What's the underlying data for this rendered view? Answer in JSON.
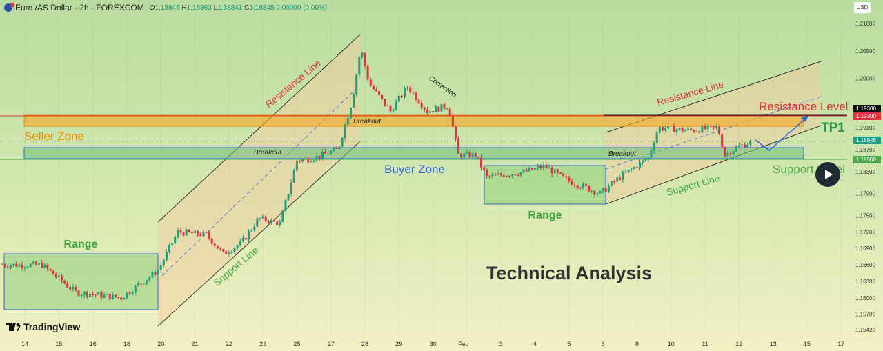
{
  "header": {
    "symbol": "Euro /AS Dollar · 2h · FOREXCOM",
    "open_label": "O",
    "open": "1,18845",
    "high_label": "H",
    "high": "1.18863",
    "low_label": "L",
    "low": "1.18841",
    "close_label": "C",
    "close": "1,18845",
    "change": "0,00000 (0,00%)"
  },
  "currency_button": "USD",
  "branding": "TradingView",
  "colors": {
    "up": "#1f9e7a",
    "down": "#e0313f",
    "seller_zone": "#f5a623",
    "buyer_zone": "#2f66d8",
    "support": "#4aa84a",
    "resistance": "#e0313f"
  },
  "chart_data": {
    "type": "candlestick",
    "timeframe": "2h",
    "x_ticks": [
      "14",
      "15",
      "16",
      "18",
      "20",
      "21",
      "22",
      "23",
      "25",
      "27",
      "28",
      "29",
      "30",
      "Feb",
      "3",
      "4",
      "5",
      "6",
      "8",
      "10",
      "11",
      "12",
      "13",
      "15",
      "17"
    ],
    "y_ticks": [
      "1.21000",
      "1.20500",
      "1.20000",
      "1.19100",
      "1.18700",
      "1.18300",
      "1.17900",
      "1.17500",
      "1.17200",
      "1.16900",
      "1.16600",
      "1.16300",
      "1.16000",
      "1.15700",
      "1.15420"
    ],
    "ylim": [
      1.1542,
      1.21
    ],
    "price_path": [
      [
        "14",
        -16,
        1.166
      ],
      [
        "14",
        12,
        1.166
      ],
      [
        "15",
        12,
        1.161
      ],
      [
        "16",
        20,
        1.16
      ],
      [
        "18",
        22,
        1.165
      ],
      [
        "20",
        12,
        1.172
      ],
      [
        "21",
        8,
        1.1715
      ],
      [
        "21",
        20,
        1.168
      ],
      [
        "22",
        9,
        1.17
      ],
      [
        "22",
        21,
        1.1745
      ],
      [
        "23",
        12,
        1.1735
      ],
      [
        "25",
        0,
        1.185
      ],
      [
        "25",
        12,
        1.1855
      ],
      [
        "27",
        5,
        1.187
      ],
      [
        "27",
        15,
        1.196
      ],
      [
        "27",
        21,
        1.2055
      ],
      [
        "28",
        3,
        1.199
      ],
      [
        "28",
        18,
        1.194
      ],
      [
        "29",
        6,
        1.1985
      ],
      [
        "29",
        20,
        1.194
      ],
      [
        "30",
        11,
        1.195
      ],
      [
        "30",
        18,
        1.186
      ],
      [
        "Feb",
        6,
        1.186
      ],
      [
        "Feb",
        14,
        1.182
      ],
      [
        "3",
        17,
        1.183
      ],
      [
        "4",
        7,
        1.184
      ],
      [
        "4",
        22,
        1.1815
      ],
      [
        "5",
        22,
        1.179
      ],
      [
        "6",
        12,
        1.182
      ],
      [
        "8",
        8,
        1.1855
      ],
      [
        "8",
        15,
        1.191
      ],
      [
        "10",
        13,
        1.1905
      ],
      [
        "11",
        9,
        1.191
      ],
      [
        "11",
        14,
        1.186
      ],
      [
        "11",
        23,
        1.1875
      ],
      [
        "12",
        9,
        1.18845
      ]
    ],
    "price_labels": [
      {
        "value": "1.19300",
        "bg": "#111111"
      },
      {
        "value": "1.19300",
        "bg": "#e0313f"
      },
      {
        "value": "1.18845",
        "bg": "#1f9e8a"
      },
      {
        "value": "1.18500",
        "bg": "#4aa84a"
      }
    ],
    "levels": {
      "resistance": 1.193,
      "current": 1.18845,
      "support": 1.185
    }
  },
  "annotations": {
    "range_left": "Range",
    "support_line_1": "Support Line",
    "resistance_line_1": "Resistance Line",
    "breakout_1": "Breakout",
    "breakout_2": "Breakout",
    "breakout_3": "Breakout",
    "correction": "Correction",
    "seller_zone": "Seller Zone",
    "buyer_zone": "Buyer Zone",
    "range_mid": "Range",
    "resistance_line_2": "Resistance Line",
    "support_line_2": "Support Line",
    "resistance_level": "Resistance Level",
    "tp1": "TP1",
    "support_level": "Support Level",
    "title": "Technical Analysis"
  }
}
